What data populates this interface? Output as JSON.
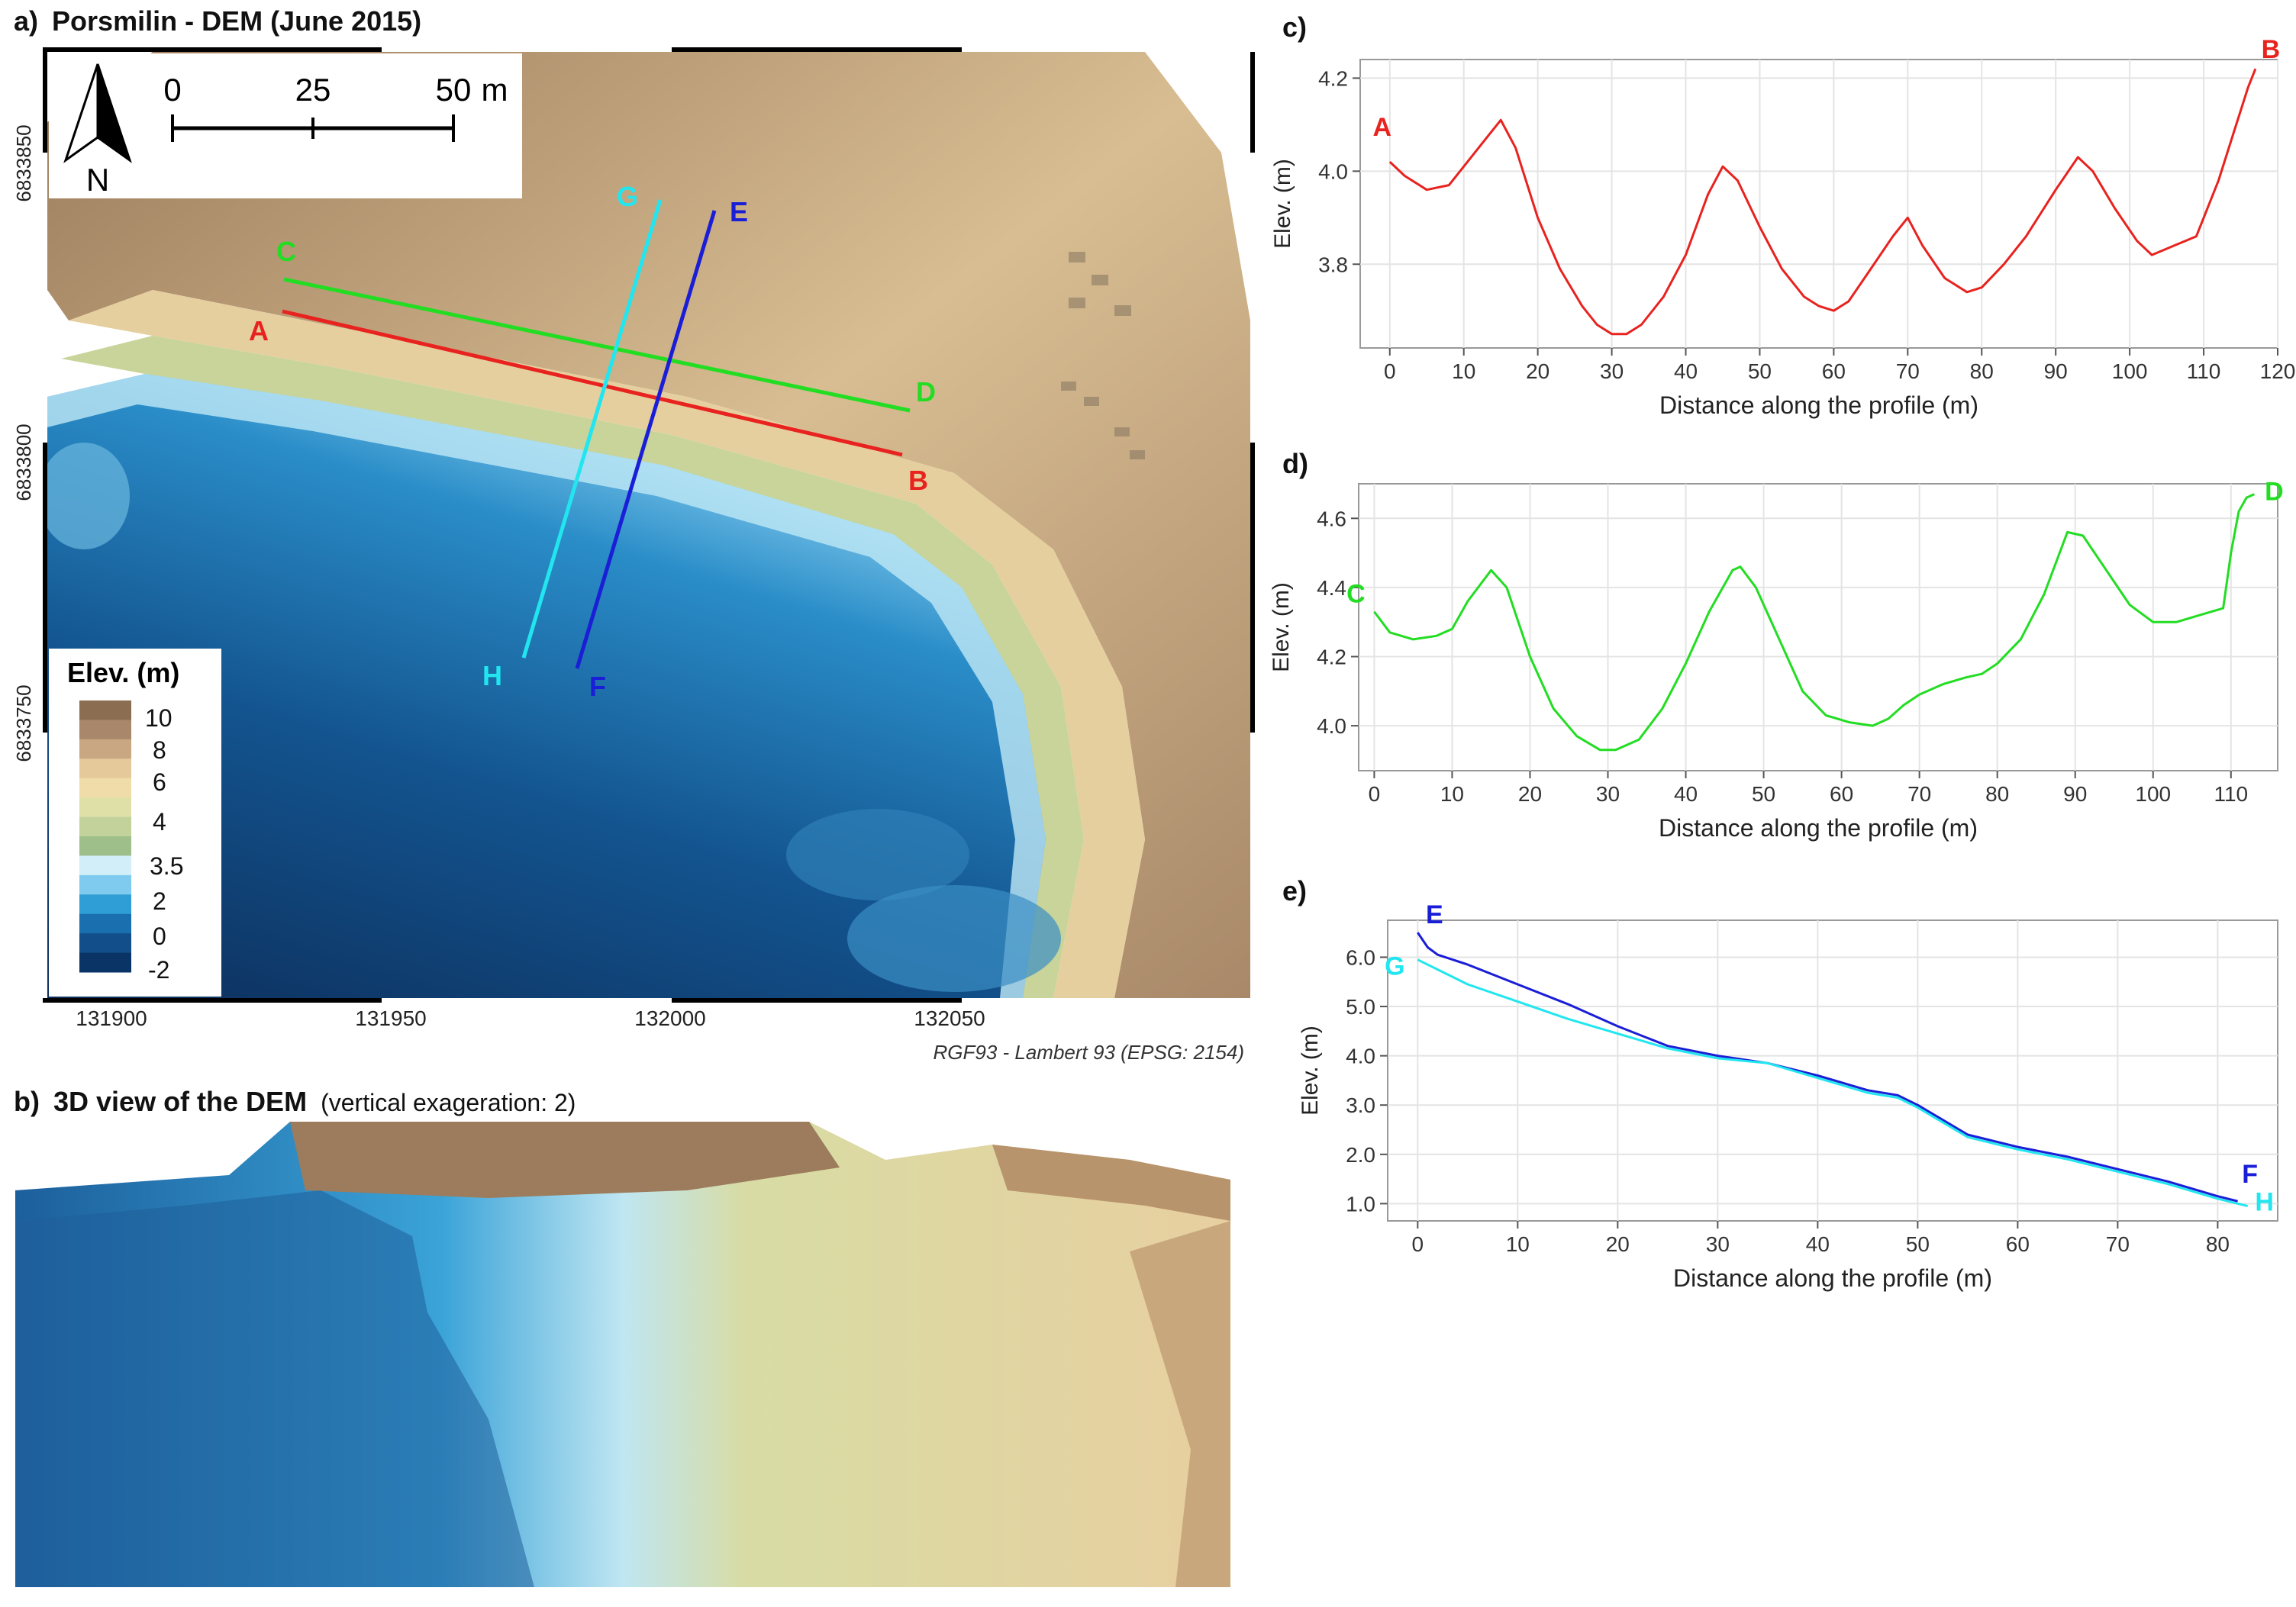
{
  "panel_a": {
    "label": "a)",
    "title": "Porsmilin - DEM (June 2015)",
    "north": "N",
    "scale_labels": [
      "0",
      "25",
      "50"
    ],
    "scale_unit": "m",
    "x_ticks": [
      "131900",
      "131950",
      "132000",
      "132050"
    ],
    "y_ticks": [
      "6833850",
      "6833800",
      "6833750"
    ],
    "crs": "RGF93 - Lambert 93 (EPSG: 2154)",
    "legend_title": "Elev. (m)",
    "legend_labels": [
      "10",
      "8",
      "6",
      "4",
      "3.5",
      "2",
      "0",
      "-2"
    ],
    "legend_colors": [
      "#8b6e52",
      "#a8876a",
      "#c9a782",
      "#e6c99a",
      "#efdca8",
      "#dfe0a8",
      "#c2d29a",
      "#9fbf8a",
      "#d2eef8",
      "#7fcbef",
      "#2f9ed6",
      "#1a6fae",
      "#124f8a",
      "#0b3466"
    ],
    "profile_labels": [
      "A",
      "B",
      "C",
      "D",
      "E",
      "F",
      "G",
      "H"
    ],
    "colors": {
      "ab": "#e8231f",
      "cd": "#22dd22",
      "ef": "#1a1ed6",
      "gh": "#22e6ef"
    }
  },
  "panel_b": {
    "label": "b)",
    "title": "3D view of the DEM",
    "subtitle": "(vertical exageration: 2)"
  },
  "chart_data": [
    {
      "panel": "c)",
      "type": "line",
      "xlabel": "Distance along the profile (m)",
      "ylabel": "Elev. (m)",
      "xlim": [
        -4,
        120
      ],
      "ylim": [
        3.62,
        4.24
      ],
      "xticks": [
        0,
        10,
        20,
        30,
        40,
        50,
        60,
        70,
        80,
        90,
        100,
        110,
        120
      ],
      "yticks": [
        3.8,
        4.0,
        4.2
      ],
      "ytick_labels": [
        "3.8",
        "4.0",
        "4.2"
      ],
      "end_labels": [
        {
          "text": "A",
          "color": "#e8231f"
        },
        {
          "text": "B",
          "color": "#e8231f"
        }
      ],
      "series": [
        {
          "color": "#e8231f",
          "x": [
            0,
            2,
            5,
            8,
            10,
            13,
            15,
            17,
            20,
            23,
            26,
            28,
            30,
            32,
            34,
            37,
            40,
            43,
            45,
            47,
            50,
            53,
            56,
            58,
            60,
            62,
            65,
            68,
            70,
            72,
            75,
            78,
            80,
            83,
            86,
            90,
            93,
            95,
            98,
            101,
            103,
            106,
            109,
            110,
            112,
            114,
            116,
            117
          ],
          "y": [
            4.02,
            3.99,
            3.96,
            3.97,
            4.01,
            4.07,
            4.11,
            4.05,
            3.9,
            3.79,
            3.71,
            3.67,
            3.65,
            3.65,
            3.67,
            3.73,
            3.82,
            3.95,
            4.01,
            3.98,
            3.88,
            3.79,
            3.73,
            3.71,
            3.7,
            3.72,
            3.79,
            3.86,
            3.9,
            3.84,
            3.77,
            3.74,
            3.75,
            3.8,
            3.86,
            3.96,
            4.03,
            4.0,
            3.92,
            3.85,
            3.82,
            3.84,
            3.86,
            3.9,
            3.98,
            4.08,
            4.18,
            4.22
          ]
        }
      ]
    },
    {
      "panel": "d)",
      "type": "line",
      "xlabel": "Distance along the profile (m)",
      "ylabel": "Elev. (m)",
      "xlim": [
        -2,
        116
      ],
      "ylim": [
        3.87,
        4.7
      ],
      "xticks": [
        0,
        10,
        20,
        30,
        40,
        50,
        60,
        70,
        80,
        90,
        100,
        110
      ],
      "yticks": [
        4.0,
        4.2,
        4.4,
        4.6
      ],
      "ytick_labels": [
        "4.0",
        "4.2",
        "4.4",
        "4.6"
      ],
      "end_labels": [
        {
          "text": "C",
          "color": "#22dd22"
        },
        {
          "text": "D",
          "color": "#22dd22"
        }
      ],
      "series": [
        {
          "color": "#22dd22",
          "x": [
            0,
            2,
            5,
            8,
            10,
            12,
            15,
            17,
            20,
            23,
            26,
            29,
            31,
            34,
            37,
            40,
            43,
            46,
            47,
            49,
            52,
            55,
            58,
            61,
            64,
            66,
            68,
            70,
            73,
            76,
            78,
            80,
            83,
            86,
            89,
            91,
            94,
            97,
            100,
            103,
            106,
            109,
            110,
            111,
            112,
            113
          ],
          "y": [
            4.33,
            4.27,
            4.25,
            4.26,
            4.28,
            4.36,
            4.45,
            4.4,
            4.2,
            4.05,
            3.97,
            3.93,
            3.93,
            3.96,
            4.05,
            4.18,
            4.33,
            4.45,
            4.46,
            4.4,
            4.25,
            4.1,
            4.03,
            4.01,
            4.0,
            4.02,
            4.06,
            4.09,
            4.12,
            4.14,
            4.15,
            4.18,
            4.25,
            4.38,
            4.56,
            4.55,
            4.45,
            4.35,
            4.3,
            4.3,
            4.32,
            4.34,
            4.5,
            4.62,
            4.66,
            4.67
          ]
        }
      ]
    },
    {
      "panel": "e)",
      "type": "line",
      "xlabel": "Distance along the profile (m)",
      "ylabel": "Elev. (m)",
      "xlim": [
        -3,
        86
      ],
      "ylim": [
        0.65,
        6.75
      ],
      "xticks": [
        0,
        10,
        20,
        30,
        40,
        50,
        60,
        70,
        80
      ],
      "yticks": [
        1,
        2,
        3,
        4,
        5,
        6
      ],
      "ytick_labels": [
        "1.0",
        "2.0",
        "3.0",
        "4.0",
        "5.0",
        "6.0"
      ],
      "end_labels": [
        {
          "text": "E",
          "color": "#1a1ed6"
        },
        {
          "text": "G",
          "color": "#22e6ef"
        },
        {
          "text": "F",
          "color": "#1a1ed6"
        },
        {
          "text": "H",
          "color": "#22e6ef"
        }
      ],
      "series": [
        {
          "color": "#1a1ed6",
          "x": [
            0,
            1,
            2,
            5,
            10,
            15,
            20,
            25,
            30,
            35,
            40,
            45,
            48,
            50,
            55,
            60,
            65,
            70,
            75,
            80,
            82
          ],
          "y": [
            6.5,
            6.2,
            6.05,
            5.85,
            5.45,
            5.05,
            4.6,
            4.2,
            4.0,
            3.85,
            3.6,
            3.3,
            3.2,
            3.0,
            2.4,
            2.15,
            1.95,
            1.7,
            1.45,
            1.15,
            1.05
          ]
        },
        {
          "color": "#22e6ef",
          "x": [
            0,
            2,
            5,
            10,
            15,
            20,
            25,
            30,
            35,
            40,
            45,
            48,
            50,
            55,
            60,
            65,
            70,
            75,
            80,
            83
          ],
          "y": [
            5.95,
            5.75,
            5.45,
            5.1,
            4.75,
            4.45,
            4.15,
            3.95,
            3.85,
            3.55,
            3.25,
            3.15,
            2.95,
            2.35,
            2.1,
            1.9,
            1.65,
            1.4,
            1.1,
            0.95
          ]
        }
      ]
    }
  ]
}
